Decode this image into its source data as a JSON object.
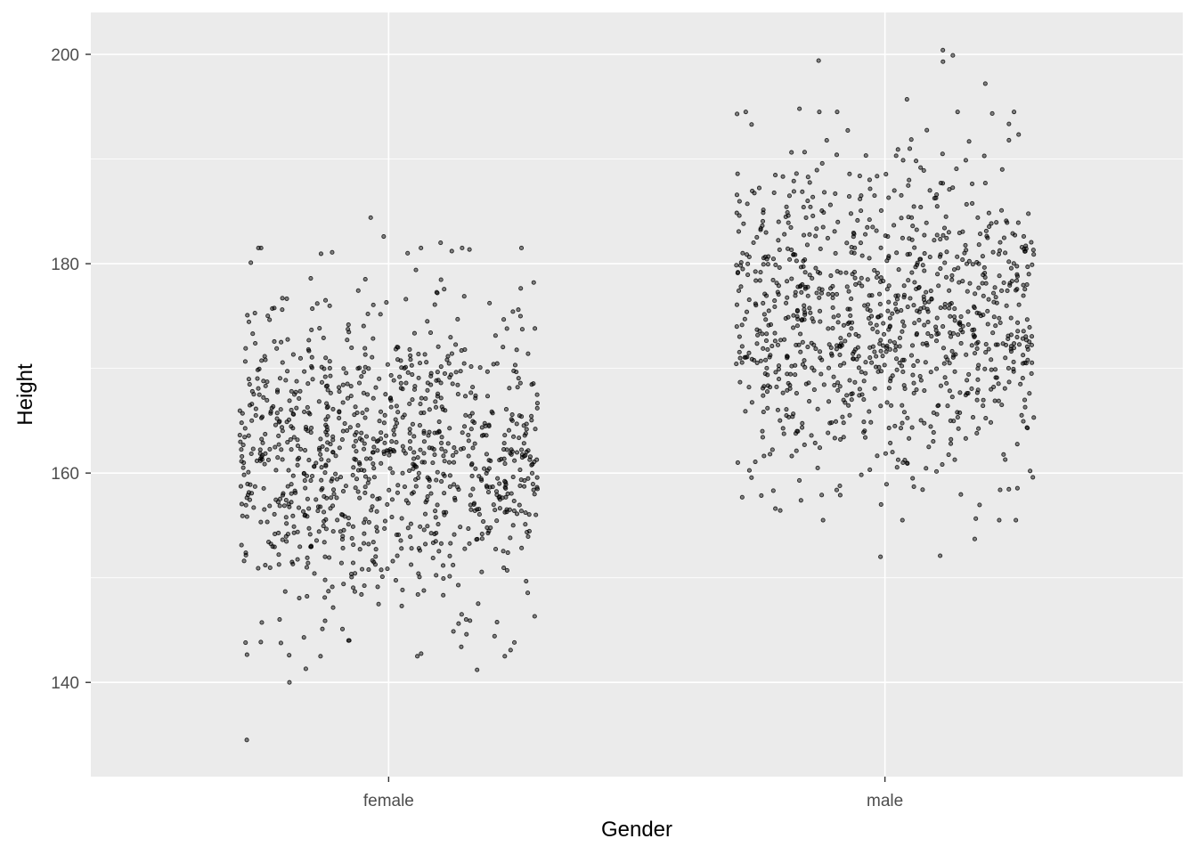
{
  "chart_data": {
    "type": "scatter",
    "jitter": true,
    "xlabel": "Gender",
    "ylabel": "Height",
    "categories": [
      "female",
      "male"
    ],
    "ylim": [
      131,
      204
    ],
    "y_ticks": [
      140,
      160,
      180,
      200
    ],
    "grid": true,
    "legend": "none",
    "colors": {
      "panel": "#ebebeb",
      "grid": "#ffffff",
      "point": "#000000",
      "tick_text": "#4d4d4d"
    },
    "series": [
      {
        "category": "female",
        "summary": {
          "mean": 162,
          "sd": 7.5,
          "n": 1000
        },
        "values": [
          134.5,
          140.0,
          141.2,
          141.3,
          143.8,
          144.0,
          144.3,
          144.6,
          145.1,
          145.9,
          146.5,
          147.3,
          148.4,
          149.4,
          150.1,
          151.2,
          152.0,
          152.6,
          153.4,
          154.1,
          154.7,
          155.3,
          155.9,
          156.4,
          157.0,
          157.6,
          158.1,
          158.7,
          159.2,
          159.8,
          160.3,
          160.9,
          161.5,
          162.0,
          162.6,
          163.2,
          163.8,
          164.4,
          165.0,
          165.7,
          166.4,
          167.1,
          167.8,
          168.6,
          169.5,
          170.4,
          171.4,
          172.5,
          173.8,
          175.2,
          176.3,
          177.2,
          178.2,
          179.4,
          180.1,
          181.0,
          181.2,
          181.5,
          182.0,
          182.6,
          184.4
        ]
      },
      {
        "category": "male",
        "summary": {
          "mean": 175,
          "sd": 7.5,
          "n": 1000
        },
        "values": [
          152.0,
          152.1,
          153.7,
          155.5,
          156.6,
          157.0,
          157.9,
          158.7,
          159.5,
          160.2,
          161.0,
          161.8,
          162.5,
          163.3,
          164.0,
          164.8,
          165.5,
          166.2,
          166.9,
          167.5,
          168.1,
          168.7,
          169.3,
          169.9,
          170.5,
          171.0,
          171.6,
          172.1,
          172.7,
          173.2,
          173.8,
          174.3,
          174.9,
          175.4,
          176.0,
          176.6,
          177.2,
          177.8,
          178.4,
          179.0,
          179.7,
          180.4,
          181.1,
          181.8,
          182.6,
          183.5,
          184.4,
          185.4,
          186.5,
          187.7,
          189.0,
          190.3,
          191.8,
          193.3,
          194.8,
          195.7,
          197.2,
          199.3,
          199.4,
          199.9,
          200.4
        ]
      }
    ]
  }
}
